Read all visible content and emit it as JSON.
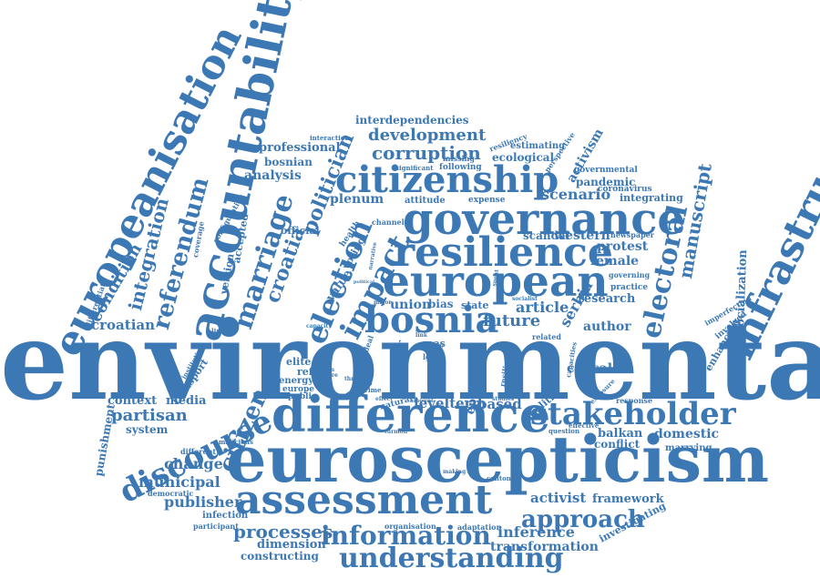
{
  "theme": {
    "word_color": "#3c78b4",
    "background": "#ffffff"
  },
  "words": [
    {
      "id": "environmental",
      "text": "environmental"
    },
    {
      "id": "euroscepticism",
      "text": "euroscepticism"
    },
    {
      "id": "difference",
      "text": "difference"
    },
    {
      "id": "assessment",
      "text": "assessment"
    },
    {
      "id": "europeanisation",
      "text": "europeanisation"
    },
    {
      "id": "accountability",
      "text": "accountability"
    },
    {
      "id": "infrastructure",
      "text": "infrastructure"
    },
    {
      "id": "governance",
      "text": "governance"
    },
    {
      "id": "resilience",
      "text": "resilience"
    },
    {
      "id": "european",
      "text": "european"
    },
    {
      "id": "citizenship",
      "text": "citizenship"
    },
    {
      "id": "bosnia",
      "text": "bosnia"
    },
    {
      "id": "stakeholder",
      "text": "stakeholder"
    },
    {
      "id": "discourse",
      "text": "discourse"
    },
    {
      "id": "understanding",
      "text": "understanding"
    },
    {
      "id": "information",
      "text": "information"
    },
    {
      "id": "referendum",
      "text": "referendum"
    },
    {
      "id": "marriage",
      "text": "marriage"
    },
    {
      "id": "election",
      "text": "election"
    },
    {
      "id": "impact",
      "text": "impact"
    },
    {
      "id": "electoral",
      "text": "electoral"
    },
    {
      "id": "integration",
      "text": "integration"
    },
    {
      "id": "condition",
      "text": "condition"
    },
    {
      "id": "politician",
      "text": "politician"
    },
    {
      "id": "croatia",
      "text": "croatia"
    },
    {
      "id": "citizen",
      "text": "citizen"
    },
    {
      "id": "approach",
      "text": "approach"
    },
    {
      "id": "corruption",
      "text": "corruption"
    },
    {
      "id": "development",
      "text": "development"
    },
    {
      "id": "processes",
      "text": "processes"
    },
    {
      "id": "manuscript",
      "text": "manuscript"
    },
    {
      "id": "interdependencies",
      "text": "interdependencies"
    },
    {
      "id": "professional",
      "text": "professional"
    },
    {
      "id": "bosnian",
      "text": "bosnian"
    },
    {
      "id": "analysis",
      "text": "analysis"
    },
    {
      "id": "ecological",
      "text": "ecological"
    },
    {
      "id": "estimating",
      "text": "estimating"
    },
    {
      "id": "activism",
      "text": "activism"
    },
    {
      "id": "pandemic",
      "text": "pandemic"
    },
    {
      "id": "governmental",
      "text": "governmental"
    },
    {
      "id": "coronavirus",
      "text": "coronavirus"
    },
    {
      "id": "scenario",
      "text": "scenario"
    },
    {
      "id": "integrating",
      "text": "integrating"
    },
    {
      "id": "plenum",
      "text": "plenum"
    },
    {
      "id": "attitude",
      "text": "attitude"
    },
    {
      "id": "expense",
      "text": "expense"
    },
    {
      "id": "western",
      "text": "western"
    },
    {
      "id": "scandal",
      "text": "scandal"
    },
    {
      "id": "protest",
      "text": "protest"
    },
    {
      "id": "female",
      "text": "female"
    },
    {
      "id": "future",
      "text": "future"
    },
    {
      "id": "article",
      "text": "article"
    },
    {
      "id": "serbia",
      "text": "serbia"
    },
    {
      "id": "author",
      "text": "author"
    },
    {
      "id": "research",
      "text": "research"
    },
    {
      "id": "union",
      "text": "union"
    },
    {
      "id": "bias",
      "text": "bias"
    },
    {
      "id": "state",
      "text": "state"
    },
    {
      "id": "croatian",
      "text": "croatian"
    },
    {
      "id": "official",
      "text": "official"
    },
    {
      "id": "voting",
      "text": "voting"
    },
    {
      "id": "value",
      "text": "value"
    },
    {
      "id": "elite",
      "text": "elite"
    },
    {
      "id": "refer",
      "text": "refer"
    },
    {
      "id": "energy",
      "text": "energy"
    },
    {
      "id": "europe",
      "text": "europe"
    },
    {
      "id": "public",
      "text": "public"
    },
    {
      "id": "causal",
      "text": "causal"
    },
    {
      "id": "episode",
      "text": "episode"
    },
    {
      "id": "context",
      "text": "context"
    },
    {
      "id": "media",
      "text": "media"
    },
    {
      "id": "partisan",
      "text": "partisan"
    },
    {
      "id": "system",
      "text": "system"
    },
    {
      "id": "change",
      "text": "change"
    },
    {
      "id": "municipal",
      "text": "municipal"
    },
    {
      "id": "publisher",
      "text": "publisher"
    },
    {
      "id": "levelterm",
      "text": "levelterm"
    },
    {
      "id": "based",
      "text": "based"
    },
    {
      "id": "politic",
      "text": "politic"
    },
    {
      "id": "balkan",
      "text": "balkan"
    },
    {
      "id": "conflict",
      "text": "conflict"
    },
    {
      "id": "domestic",
      "text": "domestic"
    },
    {
      "id": "marrying",
      "text": "marrying"
    },
    {
      "id": "activist",
      "text": "activist"
    },
    {
      "id": "framework",
      "text": "framework"
    },
    {
      "id": "inference",
      "text": "inference"
    },
    {
      "id": "investigating",
      "text": "investigating"
    },
    {
      "id": "transformation",
      "text": "transformation"
    },
    {
      "id": "dimension",
      "text": "dimension"
    },
    {
      "id": "constructing",
      "text": "constructing"
    },
    {
      "id": "organisation",
      "text": "organisation"
    },
    {
      "id": "adaptation",
      "text": "adaptation"
    },
    {
      "id": "infection",
      "text": "infection"
    },
    {
      "id": "participant",
      "text": "participant"
    },
    {
      "id": "democratic",
      "text": "democratic"
    },
    {
      "id": "punishment",
      "text": "punishment"
    },
    {
      "id": "transport",
      "text": "transport"
    },
    {
      "id": "enhancing",
      "text": "enhancing"
    },
    {
      "id": "socialization",
      "text": "socialization"
    },
    {
      "id": "involved",
      "text": "involved"
    },
    {
      "id": "imperfection",
      "text": "imperfection"
    },
    {
      "id": "practice",
      "text": "practice"
    },
    {
      "id": "governing",
      "text": "governing"
    },
    {
      "id": "newspaper",
      "text": "newspaper"
    },
    {
      "id": "version",
      "text": "version"
    },
    {
      "id": "accepted",
      "text": "accepted"
    },
    {
      "id": "coverage",
      "text": "coverage"
    },
    {
      "id": "configuration",
      "text": "configuration"
    },
    {
      "id": "channel",
      "text": "channel"
    },
    {
      "id": "health",
      "text": "health"
    },
    {
      "id": "resilient",
      "text": "resilient"
    },
    {
      "id": "perspective",
      "text": "perspective"
    },
    {
      "id": "resiliency",
      "text": "resiliency"
    },
    {
      "id": "following",
      "text": "following"
    },
    {
      "id": "significant",
      "text": "significant"
    },
    {
      "id": "missing",
      "text": "missing"
    },
    {
      "id": "interaction",
      "text": "interaction"
    },
    {
      "id": "response",
      "text": "response"
    },
    {
      "id": "exposure",
      "text": "exposure"
    },
    {
      "id": "effective",
      "text": "effective"
    },
    {
      "id": "question",
      "text": "question"
    },
    {
      "id": "malicious",
      "text": "malicious"
    },
    {
      "id": "different",
      "text": "different"
    },
    {
      "id": "institution",
      "text": "institution"
    },
    {
      "id": "linking",
      "text": "linking"
    },
    {
      "id": "differentiate",
      "text": "differentiate"
    },
    {
      "id": "related",
      "text": "related"
    },
    {
      "id": "capacities",
      "text": "capacities"
    },
    {
      "id": "cantonal",
      "text": "cantonal"
    },
    {
      "id": "making",
      "text": "making"
    },
    {
      "id": "studies",
      "text": "studies"
    },
    {
      "id": "amount",
      "text": "amount"
    },
    {
      "id": "crime",
      "text": "crime"
    },
    {
      "id": "setting",
      "text": "setting"
    },
    {
      "id": "order",
      "text": "order"
    },
    {
      "id": "mas",
      "text": "mas"
    },
    {
      "id": "lgbt",
      "text": "lgbt"
    },
    {
      "id": "move",
      "text": "move"
    },
    {
      "id": "capacity",
      "text": "capacity"
    },
    {
      "id": "explore",
      "text": "explore"
    },
    {
      "id": "serbian",
      "text": "serbian"
    },
    {
      "id": "threat",
      "text": "threat"
    },
    {
      "id": "turmoil",
      "text": "turmoil"
    },
    {
      "id": "natural",
      "text": "natural"
    },
    {
      "id": "effect",
      "text": "effect"
    },
    {
      "id": "sar",
      "text": "sar"
    },
    {
      "id": "socialist",
      "text": "socialist"
    },
    {
      "id": "major",
      "text": "major"
    },
    {
      "id": "link",
      "text": "link"
    },
    {
      "id": "ideal",
      "text": "ideal"
    },
    {
      "id": "study",
      "text": "study"
    },
    {
      "id": "narrative",
      "text": "narrative"
    },
    {
      "id": "political",
      "text": "political"
    },
    {
      "id": "spent",
      "text": "spent"
    }
  ]
}
